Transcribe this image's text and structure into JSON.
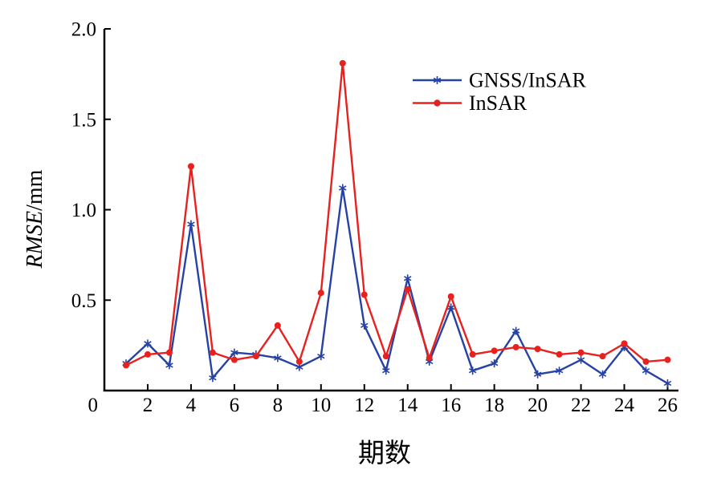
{
  "figure": {
    "background": "#ffffff"
  },
  "chart_data": {
    "type": "line",
    "title": "",
    "xlabel": "期数",
    "ylabel": "RMSE/mm",
    "ylabel_italic_part": "RMSE",
    "ylabel_unit_part": "/mm",
    "xlim": [
      0,
      26.5
    ],
    "ylim": [
      0,
      2.0
    ],
    "x_tick_values": [
      2,
      4,
      6,
      8,
      10,
      12,
      14,
      16,
      18,
      20,
      22,
      24,
      26
    ],
    "x_tick_labels": [
      "2",
      "4",
      "6",
      "8",
      "10",
      "12",
      "14",
      "16",
      "18",
      "20",
      "22",
      "24",
      "26"
    ],
    "origin_label": "0",
    "y_tick_values": [
      0.5,
      1.0,
      1.5,
      2.0
    ],
    "y_tick_labels": [
      "0.5",
      "1.0",
      "1.5",
      "2.0"
    ],
    "grid": false,
    "legend": {
      "position": "upper-right-inside",
      "frame": false,
      "entries": [
        "GNSS/InSAR",
        "InSAR"
      ]
    },
    "x": [
      1,
      2,
      3,
      4,
      5,
      6,
      7,
      8,
      9,
      10,
      11,
      12,
      13,
      14,
      15,
      16,
      17,
      18,
      19,
      20,
      21,
      22,
      23,
      24,
      25,
      26
    ],
    "series": [
      {
        "name": "GNSS/InSAR",
        "color": "#2642a4",
        "marker": "star",
        "values": [
          0.15,
          0.26,
          0.14,
          0.92,
          0.07,
          0.21,
          0.2,
          0.18,
          0.13,
          0.19,
          1.12,
          0.36,
          0.11,
          0.62,
          0.16,
          0.46,
          0.11,
          0.15,
          0.33,
          0.09,
          0.11,
          0.17,
          0.09,
          0.24,
          0.11,
          0.04
        ]
      },
      {
        "name": "InSAR",
        "color": "#e8211e",
        "marker": "circle",
        "values": [
          0.14,
          0.2,
          0.21,
          1.24,
          0.21,
          0.17,
          0.19,
          0.36,
          0.16,
          0.54,
          1.81,
          0.53,
          0.19,
          0.56,
          0.18,
          0.52,
          0.2,
          0.22,
          0.24,
          0.23,
          0.2,
          0.21,
          0.19,
          0.26,
          0.16,
          0.17
        ]
      }
    ]
  }
}
